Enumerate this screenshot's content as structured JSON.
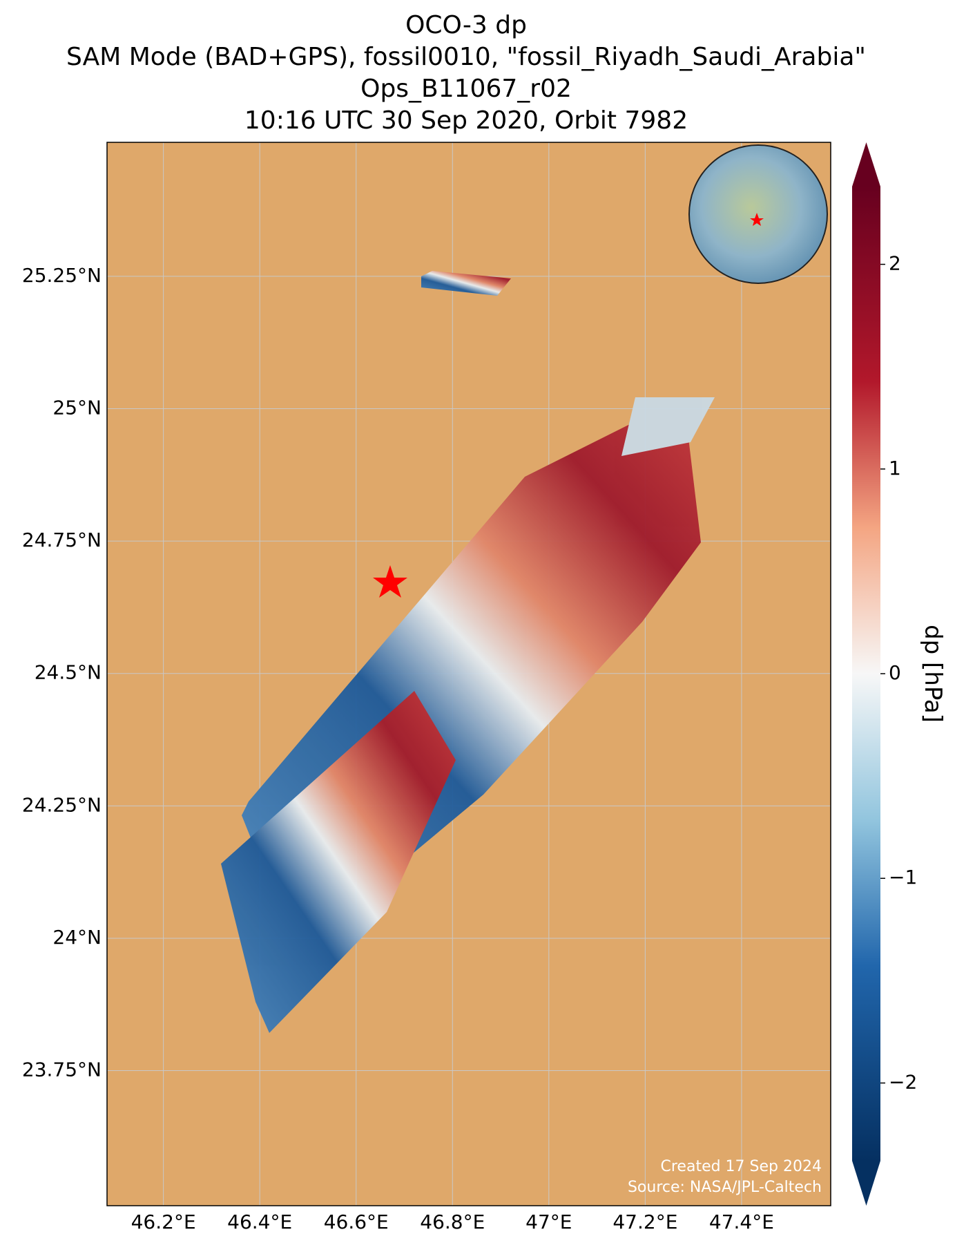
{
  "chart_data": {
    "type": "map",
    "title": [
      "OCO-3 dp",
      "SAM Mode (BAD+GPS), fossil0010, \"fossil_Riyadh_Saudi_Arabia\"",
      "Ops_B11067_r02",
      "10:16 UTC 30 Sep 2020, Orbit 7982"
    ],
    "xlim": [
      46.083,
      47.585
    ],
    "ylim": [
      23.495,
      25.503
    ],
    "xticks": [
      {
        "value": 46.2,
        "label": "46.2°E"
      },
      {
        "value": 46.4,
        "label": "46.4°E"
      },
      {
        "value": 46.6,
        "label": "46.6°E"
      },
      {
        "value": 46.8,
        "label": "46.8°E"
      },
      {
        "value": 47,
        "label": "47°E"
      },
      {
        "value": 47.2,
        "label": "47.2°E"
      },
      {
        "value": 47.4,
        "label": "47.4°E"
      }
    ],
    "yticks": [
      {
        "value": 23.75,
        "label": "23.75°N"
      },
      {
        "value": 24,
        "label": "24°N"
      },
      {
        "value": 24.25,
        "label": "24.25°N"
      },
      {
        "value": 24.5,
        "label": "24.5°N"
      },
      {
        "value": 24.75,
        "label": "24.75°N"
      },
      {
        "value": 25,
        "label": "25°N"
      },
      {
        "value": 25.25,
        "label": "25.25°N"
      }
    ],
    "grid": true,
    "colorbar": {
      "label": "dp [hPa]",
      "lim": [
        -2.38,
        2.38
      ],
      "ticks": [
        {
          "value": -2,
          "label": "−2"
        },
        {
          "value": -1,
          "label": "−1"
        },
        0,
        1,
        2
      ]
    },
    "footer": [
      "Created 17 Sep 2024",
      "Source: NASA/JPL-Caltech"
    ]
  }
}
